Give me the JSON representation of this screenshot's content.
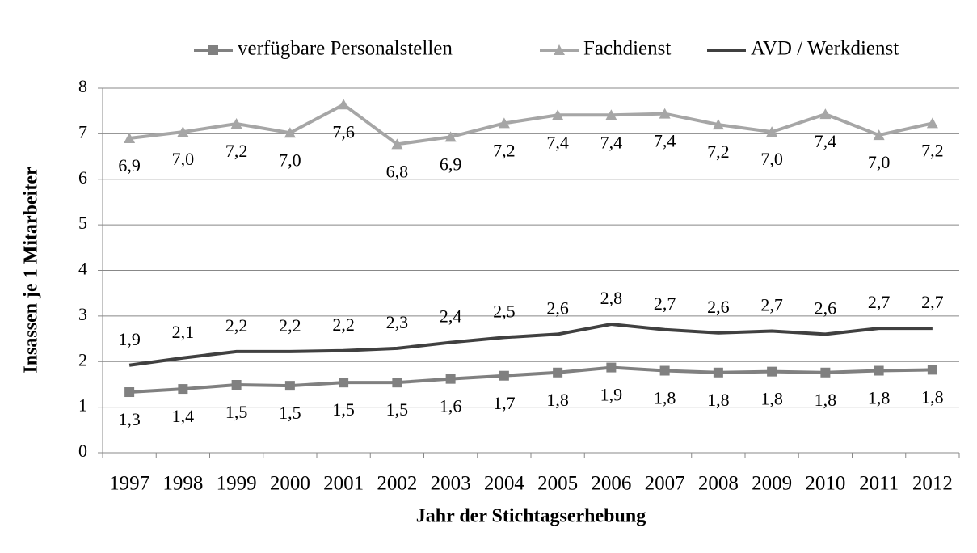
{
  "chart_data": {
    "type": "line",
    "x_label": "Jahr der Stichtagserhebung",
    "y_label": "Insassen je 1 Mitarbeiter",
    "categories": [
      "1997",
      "1998",
      "1999",
      "2000",
      "2001",
      "2002",
      "2003",
      "2004",
      "2005",
      "2006",
      "2007",
      "2008",
      "2009",
      "2010",
      "2011",
      "2012"
    ],
    "series": [
      {
        "name": "verfügbare Personalstellen",
        "color": "#808080",
        "marker": "square",
        "values": [
          1.33,
          1.4,
          1.49,
          1.47,
          1.54,
          1.54,
          1.62,
          1.69,
          1.76,
          1.87,
          1.8,
          1.76,
          1.78,
          1.76,
          1.8,
          1.82
        ],
        "value_labels": [
          "1,3",
          "1,4",
          "1,5",
          "1,5",
          "1,5",
          "1,5",
          "1,6",
          "1,7",
          "1,8",
          "1,9",
          "1,8",
          "1,8",
          "1,8",
          "1,8",
          "1,8",
          "1,8"
        ],
        "label_position": "below"
      },
      {
        "name": "Fachdienst",
        "color": "#a6a6a6",
        "marker": "triangle",
        "values": [
          6.9,
          7.04,
          7.22,
          7.02,
          7.64,
          6.77,
          6.93,
          7.23,
          7.41,
          7.41,
          7.44,
          7.2,
          7.04,
          7.43,
          6.97,
          7.23
        ],
        "value_labels": [
          "6,9",
          "7,0",
          "7,2",
          "7,0",
          "7,6",
          "6,8",
          "6,9",
          "7,2",
          "7,4",
          "7,4",
          "7,4",
          "7,2",
          "7,0",
          "7,4",
          "7,0",
          "7,2"
        ],
        "label_position": "below"
      },
      {
        "name": "AVD / Werkdienst",
        "color": "#404040",
        "marker": "none",
        "values": [
          1.92,
          2.08,
          2.22,
          2.22,
          2.24,
          2.29,
          2.42,
          2.53,
          2.6,
          2.82,
          2.7,
          2.63,
          2.67,
          2.6,
          2.73,
          2.73
        ],
        "value_labels": [
          "1,9",
          "2,1",
          "2,2",
          "2,2",
          "2,2",
          "2,3",
          "2,4",
          "2,5",
          "2,6",
          "2,8",
          "2,7",
          "2,6",
          "2,7",
          "2,6",
          "2,7",
          "2,7"
        ],
        "label_position": "above"
      }
    ],
    "ylim": [
      0,
      8
    ],
    "yticks": [
      0,
      1,
      2,
      3,
      4,
      5,
      6,
      7,
      8
    ],
    "grid": true,
    "legend": "top"
  }
}
